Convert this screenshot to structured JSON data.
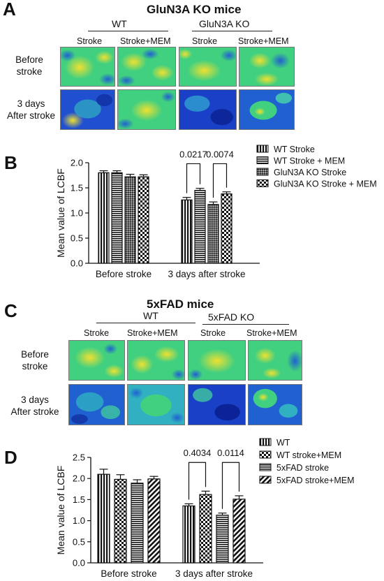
{
  "panels": {
    "A": {
      "letter": "A",
      "title": "GluN3A KO mice",
      "groups": [
        "WT",
        "GluN3A KO"
      ],
      "columns": [
        "Stroke",
        "Stroke+MEM",
        "Stroke",
        "Stroke+MEM"
      ],
      "rows": [
        "Before\nstroke",
        "3 days\nAfter stroke"
      ]
    },
    "B": {
      "letter": "B"
    },
    "C": {
      "letter": "C",
      "title": "5xFAD mice",
      "groups": [
        "WT",
        "5xFAD KO"
      ],
      "columns": [
        "Stroke",
        "Stroke+MEM",
        "Stroke",
        "Stroke+MEM"
      ],
      "rows": [
        "Before\nstroke",
        "3 days\nAfter stroke"
      ]
    },
    "D": {
      "letter": "D"
    }
  },
  "colors": {
    "map_high": "#f0e030",
    "map_mid": "#30d090",
    "map_low": "#1030c0"
  },
  "chart_data": [
    {
      "type": "bar",
      "id": "B",
      "ylabel": "Mean value of LCBF",
      "categories": [
        "Before stroke",
        "3 days after stroke"
      ],
      "ylim": [
        0,
        2.0
      ],
      "yticks": [
        "0.0",
        "0.5",
        "1.0",
        "1.5",
        "2.0"
      ],
      "series": [
        {
          "name": "WT Stroke",
          "pattern": "vlines",
          "values": [
            1.8,
            1.26
          ],
          "errors": [
            0.04,
            0.05
          ]
        },
        {
          "name": "WT Stroke + MEM",
          "pattern": "hlines",
          "values": [
            1.8,
            1.45
          ],
          "errors": [
            0.04,
            0.04
          ]
        },
        {
          "name": "GluN3A KO Stroke",
          "pattern": "crosshatch",
          "values": [
            1.72,
            1.17
          ],
          "errors": [
            0.05,
            0.05
          ]
        },
        {
          "name": "GluN3A KO Stroke + MEM",
          "pattern": "checker",
          "values": [
            1.72,
            1.38
          ],
          "errors": [
            0.04,
            0.04
          ]
        }
      ],
      "annotations": [
        {
          "text": "0.0217",
          "between": [
            0,
            1
          ],
          "category": 1
        },
        {
          "text": "0.0074",
          "between": [
            2,
            3
          ],
          "category": 1
        }
      ]
    },
    {
      "type": "bar",
      "id": "D",
      "ylabel": "Mean value of LCBF",
      "categories": [
        "Before stroke",
        "3 days after stroke"
      ],
      "ylim": [
        0,
        2.5
      ],
      "yticks": [
        "0.0",
        "0.5",
        "1.0",
        "1.5",
        "2.0",
        "2.5"
      ],
      "series": [
        {
          "name": "WT",
          "pattern": "vlines",
          "values": [
            2.1,
            1.35
          ],
          "errors": [
            0.12,
            0.05
          ]
        },
        {
          "name": "WT stroke+MEM",
          "pattern": "checker",
          "values": [
            1.98,
            1.62
          ],
          "errors": [
            0.11,
            0.08
          ]
        },
        {
          "name": "5xFAD stroke",
          "pattern": "hlines",
          "values": [
            1.89,
            1.13
          ],
          "errors": [
            0.08,
            0.05
          ]
        },
        {
          "name": "5xFAD stroke+MEM",
          "pattern": "diag",
          "values": [
            1.99,
            1.51
          ],
          "errors": [
            0.06,
            0.08
          ]
        }
      ],
      "annotations": [
        {
          "text": "0.4034",
          "between": [
            0,
            1
          ],
          "category": 1
        },
        {
          "text": "0.0114",
          "between": [
            2,
            3
          ],
          "category": 1
        }
      ]
    }
  ]
}
